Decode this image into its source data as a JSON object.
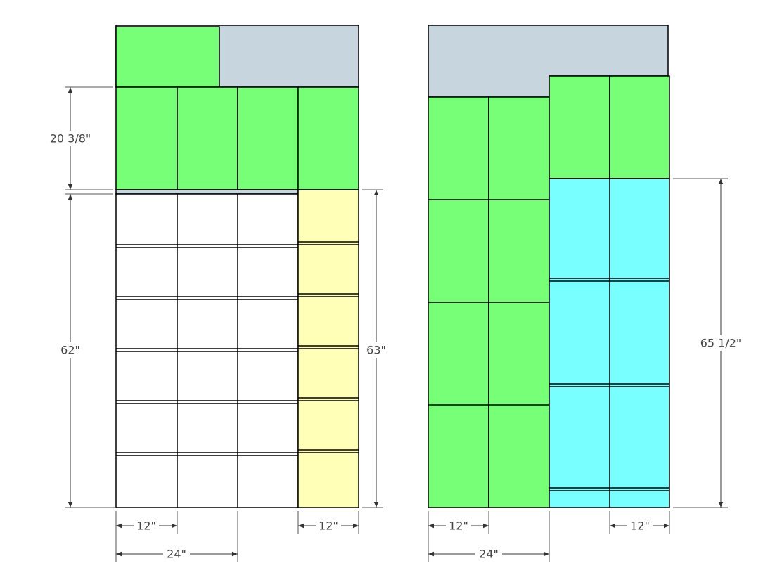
{
  "left_cabinet": {
    "dimensions": [
      "20 3/8\"",
      "62\"",
      "63\"",
      "12\"",
      "24\"",
      "12\""
    ]
  },
  "right_cabinet": {
    "dimensions": [
      "65 1/2\"",
      "12\"",
      "24\"",
      "12\""
    ]
  }
}
